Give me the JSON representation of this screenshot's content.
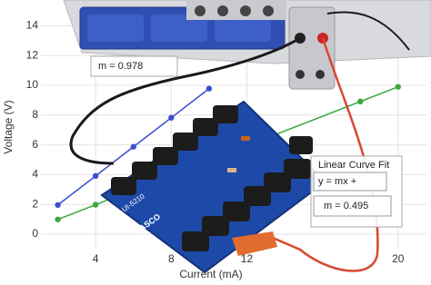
{
  "chart_data": {
    "type": "scatter",
    "xlabel": "Current (mA)",
    "ylabel": "Voltage (V)",
    "xlim": [
      0,
      21.5
    ],
    "ylim": [
      -1,
      15
    ],
    "xticks": [
      4,
      8,
      12,
      20
    ],
    "yticks": [
      0,
      2,
      4,
      6,
      8,
      10,
      12,
      14
    ],
    "grid": true,
    "series": [
      {
        "color": "#3b4fd0",
        "x": [
          2,
          4,
          6,
          8,
          10
        ],
        "values": [
          1.96,
          3.91,
          5.87,
          7.82,
          9.78
        ]
      },
      {
        "color": "#3aa83a",
        "x": [
          2,
          4,
          18,
          20
        ],
        "values": [
          0.99,
          1.98,
          8.91,
          9.9
        ]
      }
    ],
    "annotations": [
      "m = 0.978",
      "Linear Curve Fit",
      "y = mx +",
      "m = 0.495"
    ]
  },
  "photo_labels": [
    "UI-5210",
    "PASCO"
  ]
}
